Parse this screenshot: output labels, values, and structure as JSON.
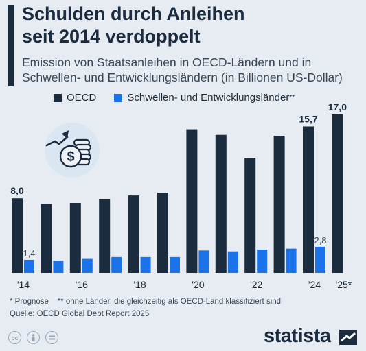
{
  "header": {
    "title_line1": "Schulden durch Anleihen",
    "title_line2": "seit 2014 verdoppelt",
    "subtitle_line1": "Emission von Staatsanleihen in OECD-Ländern und in",
    "subtitle_line2": "Schwellen- und Entwicklungsländern (in Billionen US-Dollar)"
  },
  "legend": {
    "oecd": "OECD",
    "emerging": "Schwellen- und Entwicklungsländer",
    "emerging_mark": "**"
  },
  "chart_data": {
    "type": "bar",
    "title": "Schulden durch Anleihen seit 2014 verdoppelt",
    "categories": [
      "2014",
      "2015",
      "2016",
      "2017",
      "2018",
      "2019",
      "2020",
      "2021",
      "2022",
      "2023",
      "2024",
      "2025*"
    ],
    "x_tick_labels": [
      "'14",
      "",
      "'16",
      "",
      "'18",
      "",
      "'20",
      "",
      "'22",
      "",
      "'24",
      "'25*"
    ],
    "series": [
      {
        "name": "OECD",
        "color": "#1b2c3f",
        "values": [
          8.0,
          7.4,
          7.5,
          7.9,
          8.3,
          8.6,
          15.4,
          14.8,
          12.3,
          14.7,
          15.7,
          17.0
        ]
      },
      {
        "name": "Schwellen- und Entwicklungsländer**",
        "color": "#1a73e8",
        "values": [
          1.4,
          1.3,
          1.5,
          1.7,
          1.7,
          1.7,
          2.4,
          2.3,
          2.5,
          2.6,
          2.8,
          null
        ]
      }
    ],
    "value_labels": {
      "OECD": {
        "2014": "8,0",
        "2024": "15,7",
        "2025*": "17,0"
      },
      "Schwellen- und Entwicklungsländer**": {
        "2014": "1,4",
        "2024": "2,8"
      }
    },
    "ylim": [
      0,
      18
    ],
    "grid": false,
    "legend_position": "top-left"
  },
  "footer": {
    "footnote": "* Prognose    ** ohne Länder, die gleichzeitig als OECD-Land klassifiziert sind",
    "source": "Quelle: OECD Global Debt Report 2025",
    "brand": "statista",
    "license_icons": [
      "cc-icon",
      "person-icon",
      "equal-icon"
    ]
  },
  "icons": {
    "illustration": "money-growth-icon"
  }
}
